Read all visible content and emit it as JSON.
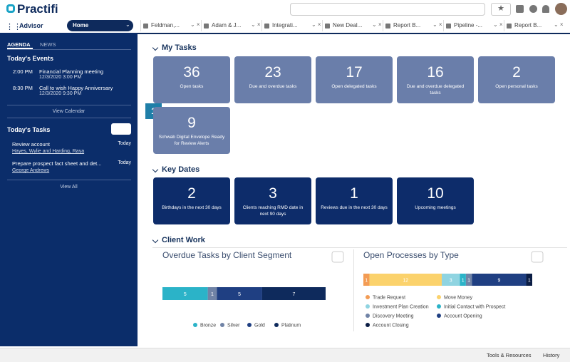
{
  "header": {
    "logo": "Practifi"
  },
  "nav": {
    "app": "Advisor",
    "home": "Home",
    "tabs": [
      "Feldman,...",
      "Adam & J...",
      "Integrati...",
      "New Deal...",
      "Report B...",
      "Pipeline -...",
      "Report B..."
    ]
  },
  "sidebar": {
    "tabs": [
      "AGENDA",
      "NEWS"
    ],
    "events_title": "Today's Events",
    "events": [
      {
        "time": "2:00 PM",
        "title": "Financial Planning meeting",
        "date": "12/3/2020 3:00 PM"
      },
      {
        "time": "8:30 PM",
        "title": "Call to wish Happy Anniversary",
        "date": "12/3/2020 9:30 PM"
      }
    ],
    "view_calendar": "View Calendar",
    "tasks_title": "Today's Tasks",
    "tasks": [
      {
        "title": "Review account",
        "due": "Today",
        "who": "Hayes, Wylie and Harding, Raya"
      },
      {
        "title": "Prepare prospect fact sheet and det...",
        "due": "Today",
        "who": "George Andrews"
      }
    ],
    "view_all": "View All"
  },
  "my_tasks": {
    "title": "My Tasks",
    "badge": "1",
    "cards": [
      {
        "value": 36,
        "label": "Open tasks"
      },
      {
        "value": 23,
        "label": "Due and overdue tasks"
      },
      {
        "value": 17,
        "label": "Open delegated tasks"
      },
      {
        "value": 16,
        "label": "Due and overdue delegated tasks"
      },
      {
        "value": 2,
        "label": "Open personal tasks"
      },
      {
        "value": 9,
        "label": "Schwab Digital Envelope Ready for Review Alerts"
      }
    ]
  },
  "key_dates": {
    "title": "Key Dates",
    "cards": [
      {
        "value": 2,
        "label": "Birthdays in the next 30 days"
      },
      {
        "value": 3,
        "label": "Clients reaching RMD date in next 90 days"
      },
      {
        "value": 1,
        "label": "Reviews due in the next 30 days"
      },
      {
        "value": 10,
        "label": "Upcoming meetings"
      }
    ]
  },
  "client_work": {
    "title": "Client Work"
  },
  "chart_data": [
    {
      "type": "stacked-bar",
      "title": "Overdue Tasks by Client Segment",
      "legend": "bottom-row",
      "series": [
        {
          "name": "Bronze",
          "color": "#2bb3c8",
          "values": [
            5
          ]
        },
        {
          "name": "Silver",
          "color": "#7083a6",
          "values": [
            1
          ]
        },
        {
          "name": "Gold",
          "color": "#1f3f82",
          "values": [
            5
          ]
        },
        {
          "name": "Platinum",
          "color": "#0e2a5c",
          "values": [
            7
          ]
        }
      ]
    },
    {
      "type": "stacked-bar",
      "title": "Open Processes by Type",
      "legend": "two-columns",
      "series": [
        {
          "name": "Trade Request",
          "color": "#f39c55",
          "values": [
            1
          ]
        },
        {
          "name": "Move Money",
          "color": "#fbd26c",
          "values": [
            12
          ]
        },
        {
          "name": "Investment Plan Creation",
          "color": "#8fd4e1",
          "values": [
            3
          ]
        },
        {
          "name": "Initial Contact with Prospect",
          "color": "#2bb3c8",
          "values": [
            1
          ]
        },
        {
          "name": "Discovery Meeting",
          "color": "#7083a6",
          "values": [
            1
          ]
        },
        {
          "name": "Account Opening",
          "color": "#1f3f82",
          "values": [
            9
          ]
        },
        {
          "name": "Account Closing",
          "color": "#0b1d44",
          "values": [
            1
          ]
        }
      ]
    }
  ],
  "footer": {
    "tools": "Tools & Resources",
    "history": "History"
  }
}
